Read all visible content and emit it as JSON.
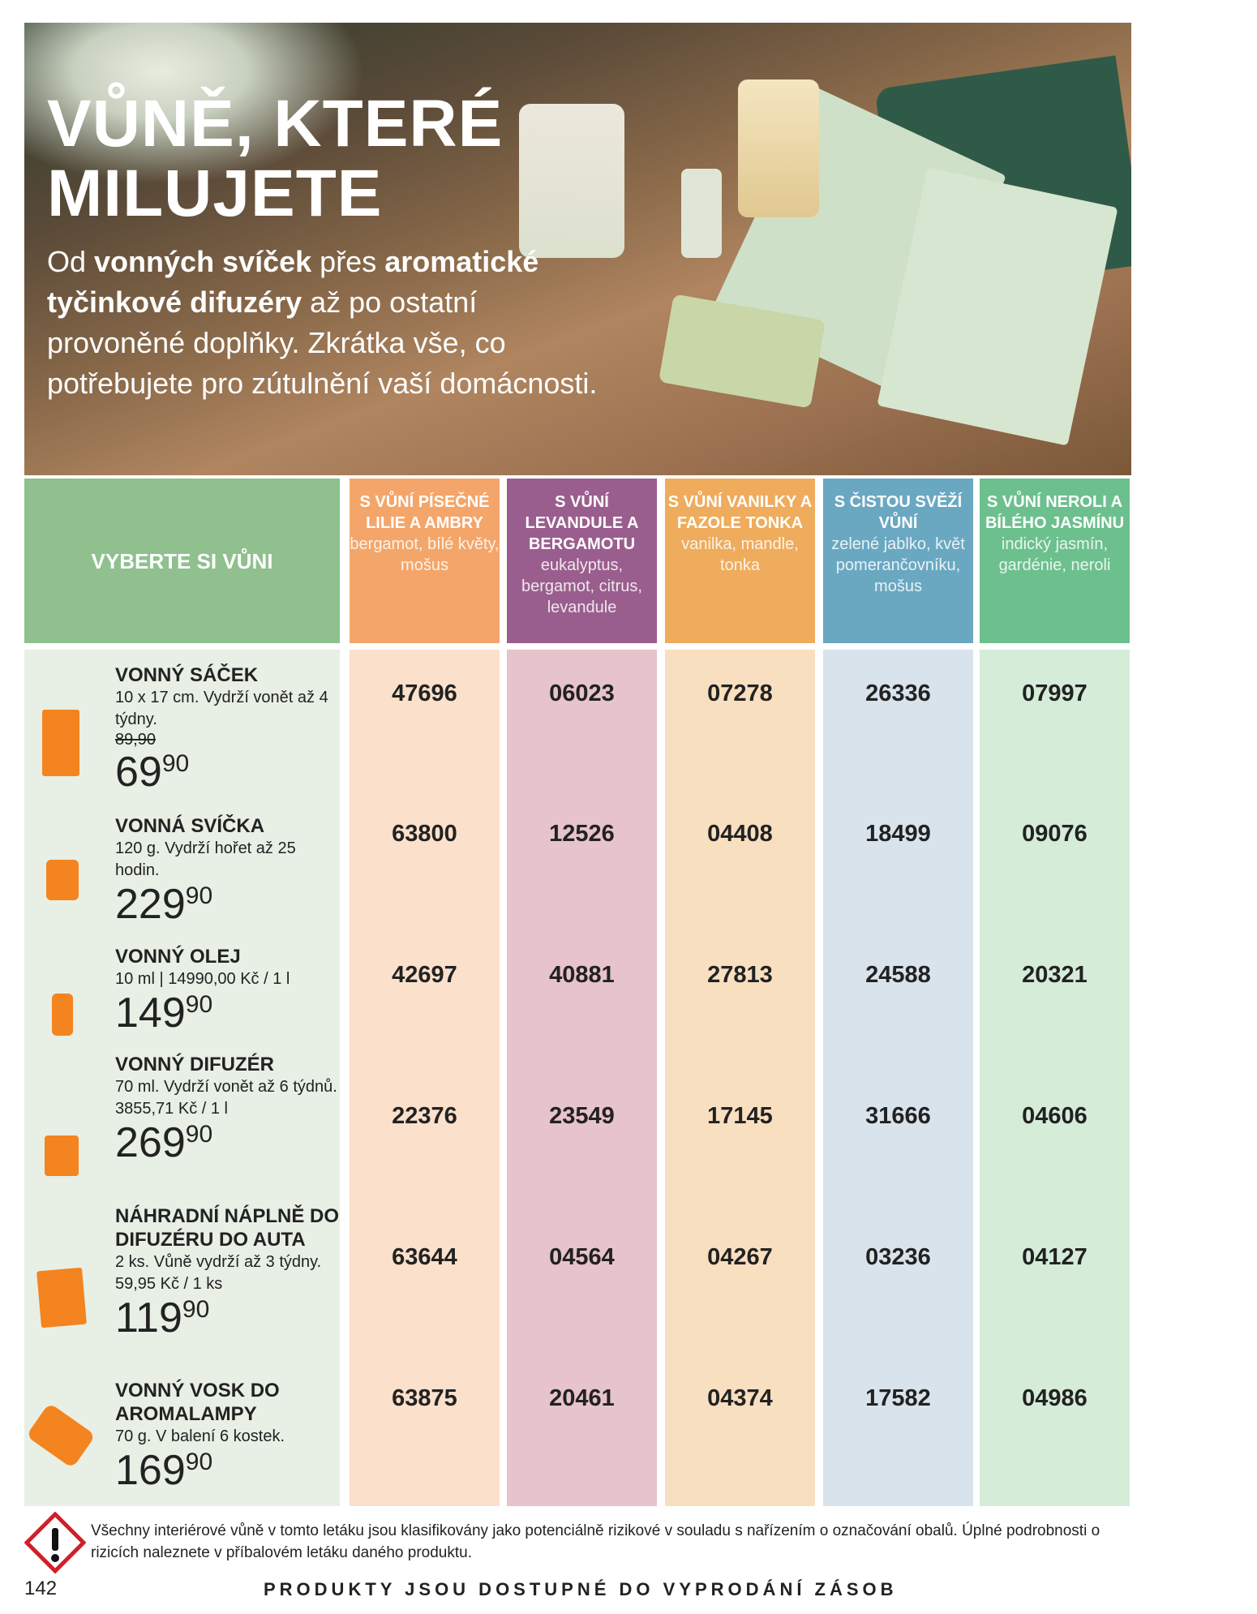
{
  "hero": {
    "title_line1": "VŮNĚ, KTERÉ",
    "title_line2": "MILUJETE",
    "intro_pre": "Od ",
    "intro_b1": "vonných svíček",
    "intro_mid": " přes ",
    "intro_b2": "aromatické tyčinkové difuzéry",
    "intro_rest": " až po ostatní provoněné doplňky. Zkrátka vše, co potřebujete pro zútulnění vaší domácnosti."
  },
  "table": {
    "header_label": "VYBERTE SI VŮNI",
    "columns": [
      {
        "title": "S VŮNÍ PÍSEČNÉ LILIE A AMBRY",
        "notes": "bergamot, bílé květy, mošus",
        "color": "#f4a66a",
        "bg": "#fbe0cb"
      },
      {
        "title": "S VŮNÍ LEVANDULE A BERGAMOTU",
        "notes": "eukalyptus, bergamot, citrus, levandule",
        "color": "#9a5e8e",
        "bg": "#e7c3cc"
      },
      {
        "title": "S VŮNÍ VANILKY A FAZOLE TONKA",
        "notes": "vanilka, mandle, tonka",
        "color": "#efac5c",
        "bg": "#f8dfc0"
      },
      {
        "title": "S ČISTOU SVĚŽÍ VŮNÍ",
        "notes": "zelené jablko, květ pomerančovníku, mošus",
        "color": "#6aa8c2",
        "bg": "#d9e3ec"
      },
      {
        "title": "S VŮNÍ NEROLI A BÍLÉHO JASMÍNU",
        "notes": "indický jasmín, gardénie, neroli",
        "color": "#6cc08e",
        "bg": "#d5ecd9"
      }
    ],
    "rows": [
      {
        "name": "VONNÝ SÁČEK",
        "desc": "10 x 17 cm. Vydrží vonět až 4 týdny.",
        "old_price": "89,90",
        "price_int": "69",
        "price_dec": "90",
        "icon": "sachet-icon",
        "codes": [
          "47696",
          "06023",
          "07278",
          "26336",
          "07997"
        ]
      },
      {
        "name": "VONNÁ SVÍČKA",
        "desc": "120 g. Vydrží hořet až 25 hodin.",
        "price_int": "229",
        "price_dec": "90",
        "icon": "candle-icon",
        "codes": [
          "63800",
          "12526",
          "04408",
          "18499",
          "09076"
        ]
      },
      {
        "name": "VONNÝ OLEJ",
        "desc": "10 ml | 14990,00 Kč / 1 l",
        "price_int": "149",
        "price_dec": "90",
        "icon": "oil-bottle-icon",
        "codes": [
          "42697",
          "40881",
          "27813",
          "24588",
          "20321"
        ]
      },
      {
        "name": "VONNÝ DIFUZÉR",
        "desc": "70 ml. Vydrží vonět až 6 týdnů. 3855,71 Kč / 1 l",
        "price_int": "269",
        "price_dec": "90",
        "icon": "reed-diffuser-icon",
        "codes": [
          "22376",
          "23549",
          "17145",
          "31666",
          "04606"
        ]
      },
      {
        "name": "NÁHRADNÍ NÁPLNĚ DO DIFUZÉRU DO AUTA",
        "desc": "2 ks. Vůně vydrží až 3 týdny. 59,95 Kč / 1 ks",
        "price_int": "119",
        "price_dec": "90",
        "icon": "refill-card-icon",
        "codes": [
          "63644",
          "04564",
          "04267",
          "03236",
          "04127"
        ]
      },
      {
        "name": "VONNÝ VOSK DO AROMALAMPY",
        "desc": "70 g. V balení 6 kostek.",
        "price_int": "169",
        "price_dec": "90",
        "icon": "wax-melt-icon",
        "codes": [
          "63875",
          "20461",
          "04374",
          "17582",
          "04986"
        ]
      }
    ]
  },
  "footer": {
    "warning": "Všechny interiérové vůně v tomto letáku jsou klasifikovány jako potenciálně rizikové v souladu s nařízením o označování obalů. Úplné podrobnosti o rizicích naleznete v příbalovém letáku daného produktu.",
    "page_number": "142",
    "slogan": "PRODUKTY JSOU DOSTUPNÉ DO VYPRODÁNÍ ZÁSOB"
  },
  "accent": "#f4841f"
}
